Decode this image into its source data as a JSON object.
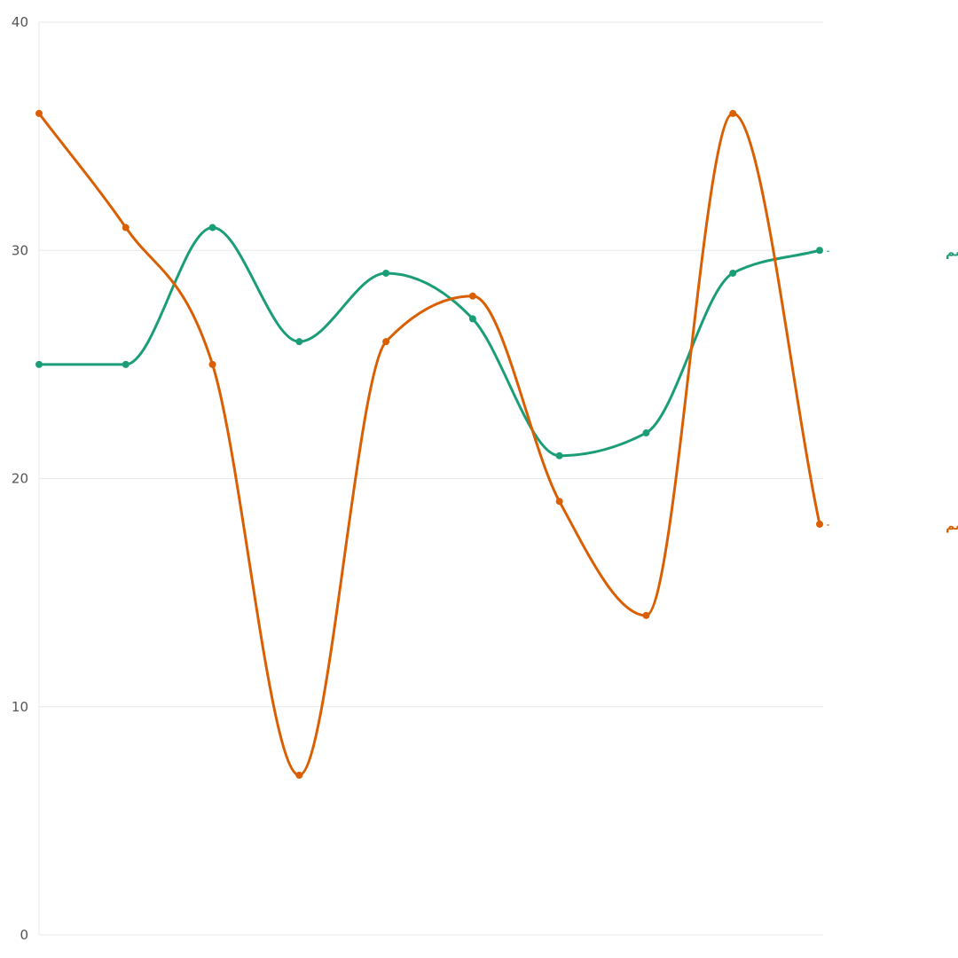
{
  "chart_data": {
    "type": "line",
    "x": [
      1,
      2,
      3,
      4,
      5,
      6,
      7,
      8,
      9,
      10
    ],
    "ylim": [
      0,
      40
    ],
    "yticks": [
      0,
      10,
      20,
      30,
      40
    ],
    "grid": true,
    "curve": "smooth",
    "legend": "end-of-line",
    "series": [
      {
        "name": "قبل تولی نعیم قاسم",
        "color": "#1b9e77",
        "values": [
          25,
          25,
          31,
          26,
          29,
          27,
          21,
          22,
          29,
          30
        ]
      },
      {
        "name": "بعد تولی نعیم قاسم",
        "color": "#d95f02",
        "values": [
          36,
          31,
          25,
          7,
          26,
          28,
          19,
          14,
          36,
          18
        ]
      }
    ]
  }
}
